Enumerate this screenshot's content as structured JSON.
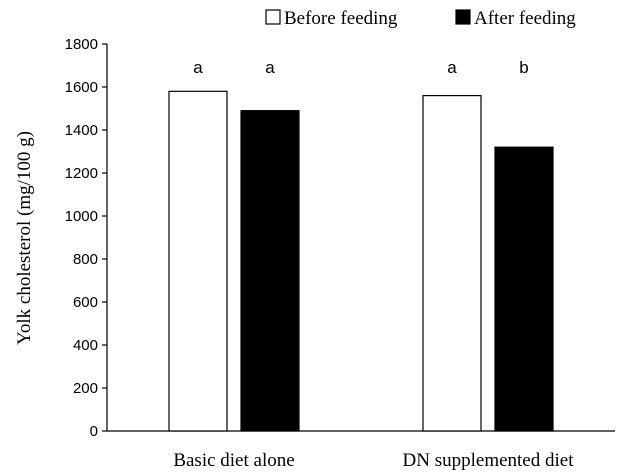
{
  "chart_data": {
    "type": "bar",
    "categories": [
      "Basic diet alone",
      "DN supplemented diet"
    ],
    "series": [
      {
        "name": "Before feeding",
        "values": [
          1580,
          1560
        ],
        "labels": [
          "a",
          "a"
        ],
        "color": "#ffffff"
      },
      {
        "name": "After feeding",
        "values": [
          1490,
          1320
        ],
        "labels": [
          "a",
          "b"
        ],
        "color": "#000000"
      }
    ],
    "ylabel": "Yolk cholesterol (mg/100 g)",
    "xlabel": "",
    "ylim": [
      0,
      1800
    ],
    "yticks": [
      0,
      200,
      400,
      600,
      800,
      1000,
      1200,
      1400,
      1600,
      1800
    ],
    "legend_position": "top-right",
    "grid": false
  }
}
